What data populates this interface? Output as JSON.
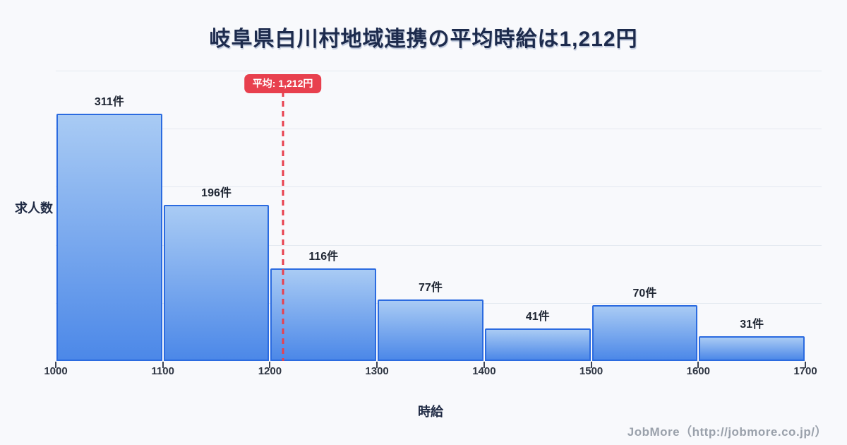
{
  "title": "岐阜県白川村地域連携の平均時給は1,212円",
  "chart_data": {
    "type": "bar",
    "subtype": "histogram",
    "title": "岐阜県白川村地域連携の平均時給は1,212円",
    "xlabel": "時給",
    "ylabel": "求人数",
    "categories": [
      "1000-1100",
      "1100-1200",
      "1200-1300",
      "1300-1400",
      "1400-1500",
      "1500-1600",
      "1600-1700"
    ],
    "values": [
      311,
      196,
      116,
      77,
      41,
      70,
      31
    ],
    "bar_label_suffix": "件",
    "bar_labels": [
      "311件",
      "196件",
      "116件",
      "77件",
      "41件",
      "70件",
      "31件"
    ],
    "x_ticks": [
      1000,
      1100,
      1200,
      1300,
      1400,
      1500,
      1600,
      1700
    ],
    "x_range": [
      1000,
      1700
    ],
    "y_range": [
      0,
      365
    ],
    "gridline_values": [
      73,
      146,
      219,
      292,
      365
    ],
    "grid": "horizontal",
    "legend_position": "none",
    "average": {
      "value": 1212,
      "label": "平均: 1,212円"
    }
  },
  "footer": {
    "credit": "JobMore（http://jobmore.co.jp/）"
  },
  "colors": {
    "background": "#f8f9fc",
    "title_text": "#1d2b4d",
    "bar_gradient_top": "#a9cbf4",
    "bar_gradient_bottom": "#4c88e8",
    "bar_border": "#2b6be0",
    "average_red": "#e8404e",
    "gridline": "#e4e9f0",
    "tick_text": "#2e3542",
    "footer_text": "#9aa1ab"
  }
}
